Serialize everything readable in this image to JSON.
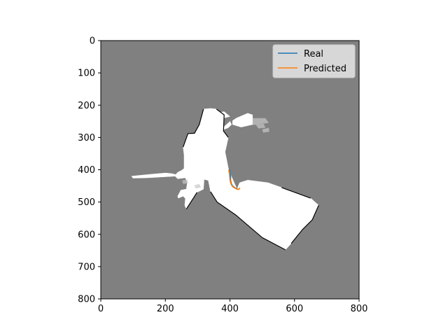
{
  "chart_data": {
    "type": "line",
    "title": "",
    "xlabel": "",
    "ylabel": "",
    "xlim": [
      0,
      800
    ],
    "ylim": [
      800,
      0
    ],
    "y_inverted": true,
    "xticks": [
      0,
      200,
      400,
      600,
      800
    ],
    "yticks": [
      0,
      100,
      200,
      300,
      400,
      500,
      600,
      700,
      800
    ],
    "grid": false,
    "legend": "top-right",
    "background": "occupancy-map image",
    "colors": {
      "unknown": "#808080",
      "free": "#ffffff",
      "wall": "#000000",
      "real": "#1f77b4",
      "predicted": "#ff7f0e"
    },
    "map_free_regions": [
      [
        [
          400,
          410
        ],
        [
          395,
          395
        ],
        [
          385,
          345
        ],
        [
          395,
          300
        ],
        [
          380,
          280
        ],
        [
          382,
          230
        ],
        [
          358,
          212
        ],
        [
          340,
          210
        ],
        [
          318,
          212
        ],
        [
          305,
          260
        ],
        [
          290,
          287
        ],
        [
          270,
          288
        ],
        [
          255,
          330
        ],
        [
          258,
          355
        ],
        [
          258,
          396
        ],
        [
          250,
          402
        ],
        [
          238,
          408
        ],
        [
          232,
          415
        ],
        [
          220,
          412
        ],
        [
          200,
          410
        ],
        [
          145,
          415
        ],
        [
          95,
          420
        ],
        [
          100,
          426
        ],
        [
          145,
          425
        ],
        [
          230,
          420
        ],
        [
          238,
          428
        ],
        [
          262,
          425
        ],
        [
          268,
          440
        ],
        [
          265,
          460
        ],
        [
          248,
          463
        ],
        [
          238,
          482
        ],
        [
          240,
          488
        ],
        [
          255,
          482
        ],
        [
          262,
          489
        ],
        [
          260,
          510
        ],
        [
          265,
          522
        ],
        [
          298,
          470
        ],
        [
          318,
          460
        ],
        [
          320,
          430
        ],
        [
          333,
          433
        ],
        [
          340,
          468
        ],
        [
          360,
          500
        ],
        [
          418,
          540
        ],
        [
          500,
          610
        ],
        [
          572,
          648
        ],
        [
          590,
          628
        ],
        [
          625,
          585
        ],
        [
          655,
          555
        ],
        [
          675,
          510
        ],
        [
          650,
          488
        ],
        [
          560,
          455
        ],
        [
          518,
          440
        ],
        [
          455,
          432
        ],
        [
          430,
          440
        ],
        [
          422,
          460
        ]
      ],
      [
        [
          408,
          248
        ],
        [
          420,
          240
        ],
        [
          455,
          225
        ],
        [
          470,
          230
        ],
        [
          470,
          260
        ],
        [
          435,
          268
        ],
        [
          408,
          260
        ]
      ],
      [
        [
          338,
          255
        ],
        [
          362,
          248
        ],
        [
          372,
          262
        ],
        [
          360,
          275
        ],
        [
          340,
          270
        ]
      ],
      [
        [
          380,
          268
        ],
        [
          395,
          255
        ],
        [
          400,
          250
        ],
        [
          405,
          260
        ],
        [
          395,
          270
        ],
        [
          382,
          275
        ]
      ],
      [
        [
          352,
          225
        ],
        [
          382,
          220
        ],
        [
          400,
          235
        ],
        [
          380,
          240
        ],
        [
          355,
          238
        ]
      ]
    ],
    "map_clutter_regions": [
      [
        [
          470,
          240
        ],
        [
          510,
          240
        ],
        [
          520,
          255
        ],
        [
          470,
          262
        ]
      ],
      [
        [
          480,
          260
        ],
        [
          505,
          258
        ],
        [
          510,
          270
        ],
        [
          488,
          272
        ]
      ],
      [
        [
          500,
          275
        ],
        [
          520,
          270
        ],
        [
          522,
          282
        ],
        [
          503,
          285
        ]
      ],
      [
        [
          252,
          433
        ],
        [
          268,
          430
        ],
        [
          270,
          442
        ],
        [
          255,
          444
        ]
      ],
      [
        [
          290,
          448
        ],
        [
          305,
          444
        ],
        [
          310,
          455
        ],
        [
          293,
          458
        ]
      ]
    ],
    "map_wall_segments": [
      [
        [
          318,
          212
        ],
        [
          305,
          260
        ],
        [
          290,
          287
        ],
        [
          270,
          288
        ],
        [
          255,
          330
        ]
      ],
      [
        [
          358,
          212
        ],
        [
          382,
          230
        ],
        [
          380,
          280
        ],
        [
          395,
          300
        ]
      ],
      [
        [
          265,
          522
        ],
        [
          298,
          470
        ]
      ],
      [
        [
          340,
          468
        ],
        [
          360,
          500
        ],
        [
          418,
          540
        ],
        [
          500,
          610
        ],
        [
          572,
          648
        ]
      ],
      [
        [
          590,
          628
        ],
        [
          625,
          585
        ],
        [
          655,
          555
        ],
        [
          675,
          510
        ]
      ],
      [
        [
          560,
          455
        ],
        [
          650,
          488
        ]
      ]
    ],
    "series": [
      {
        "name": "Real",
        "x": [
          398,
          400,
          402,
          402,
          404,
          408,
          413,
          417,
          420,
          423
        ],
        "y": [
          398,
          410,
          420,
          432,
          442,
          450,
          454,
          457,
          458,
          459
        ]
      },
      {
        "name": "Predicted",
        "x": [
          396,
          398,
          399,
          400,
          402,
          405,
          410,
          416,
          421,
          426,
          430,
          428
        ],
        "y": [
          400,
          410,
          420,
          430,
          440,
          448,
          454,
          457,
          460,
          461,
          458,
          456
        ]
      }
    ]
  }
}
